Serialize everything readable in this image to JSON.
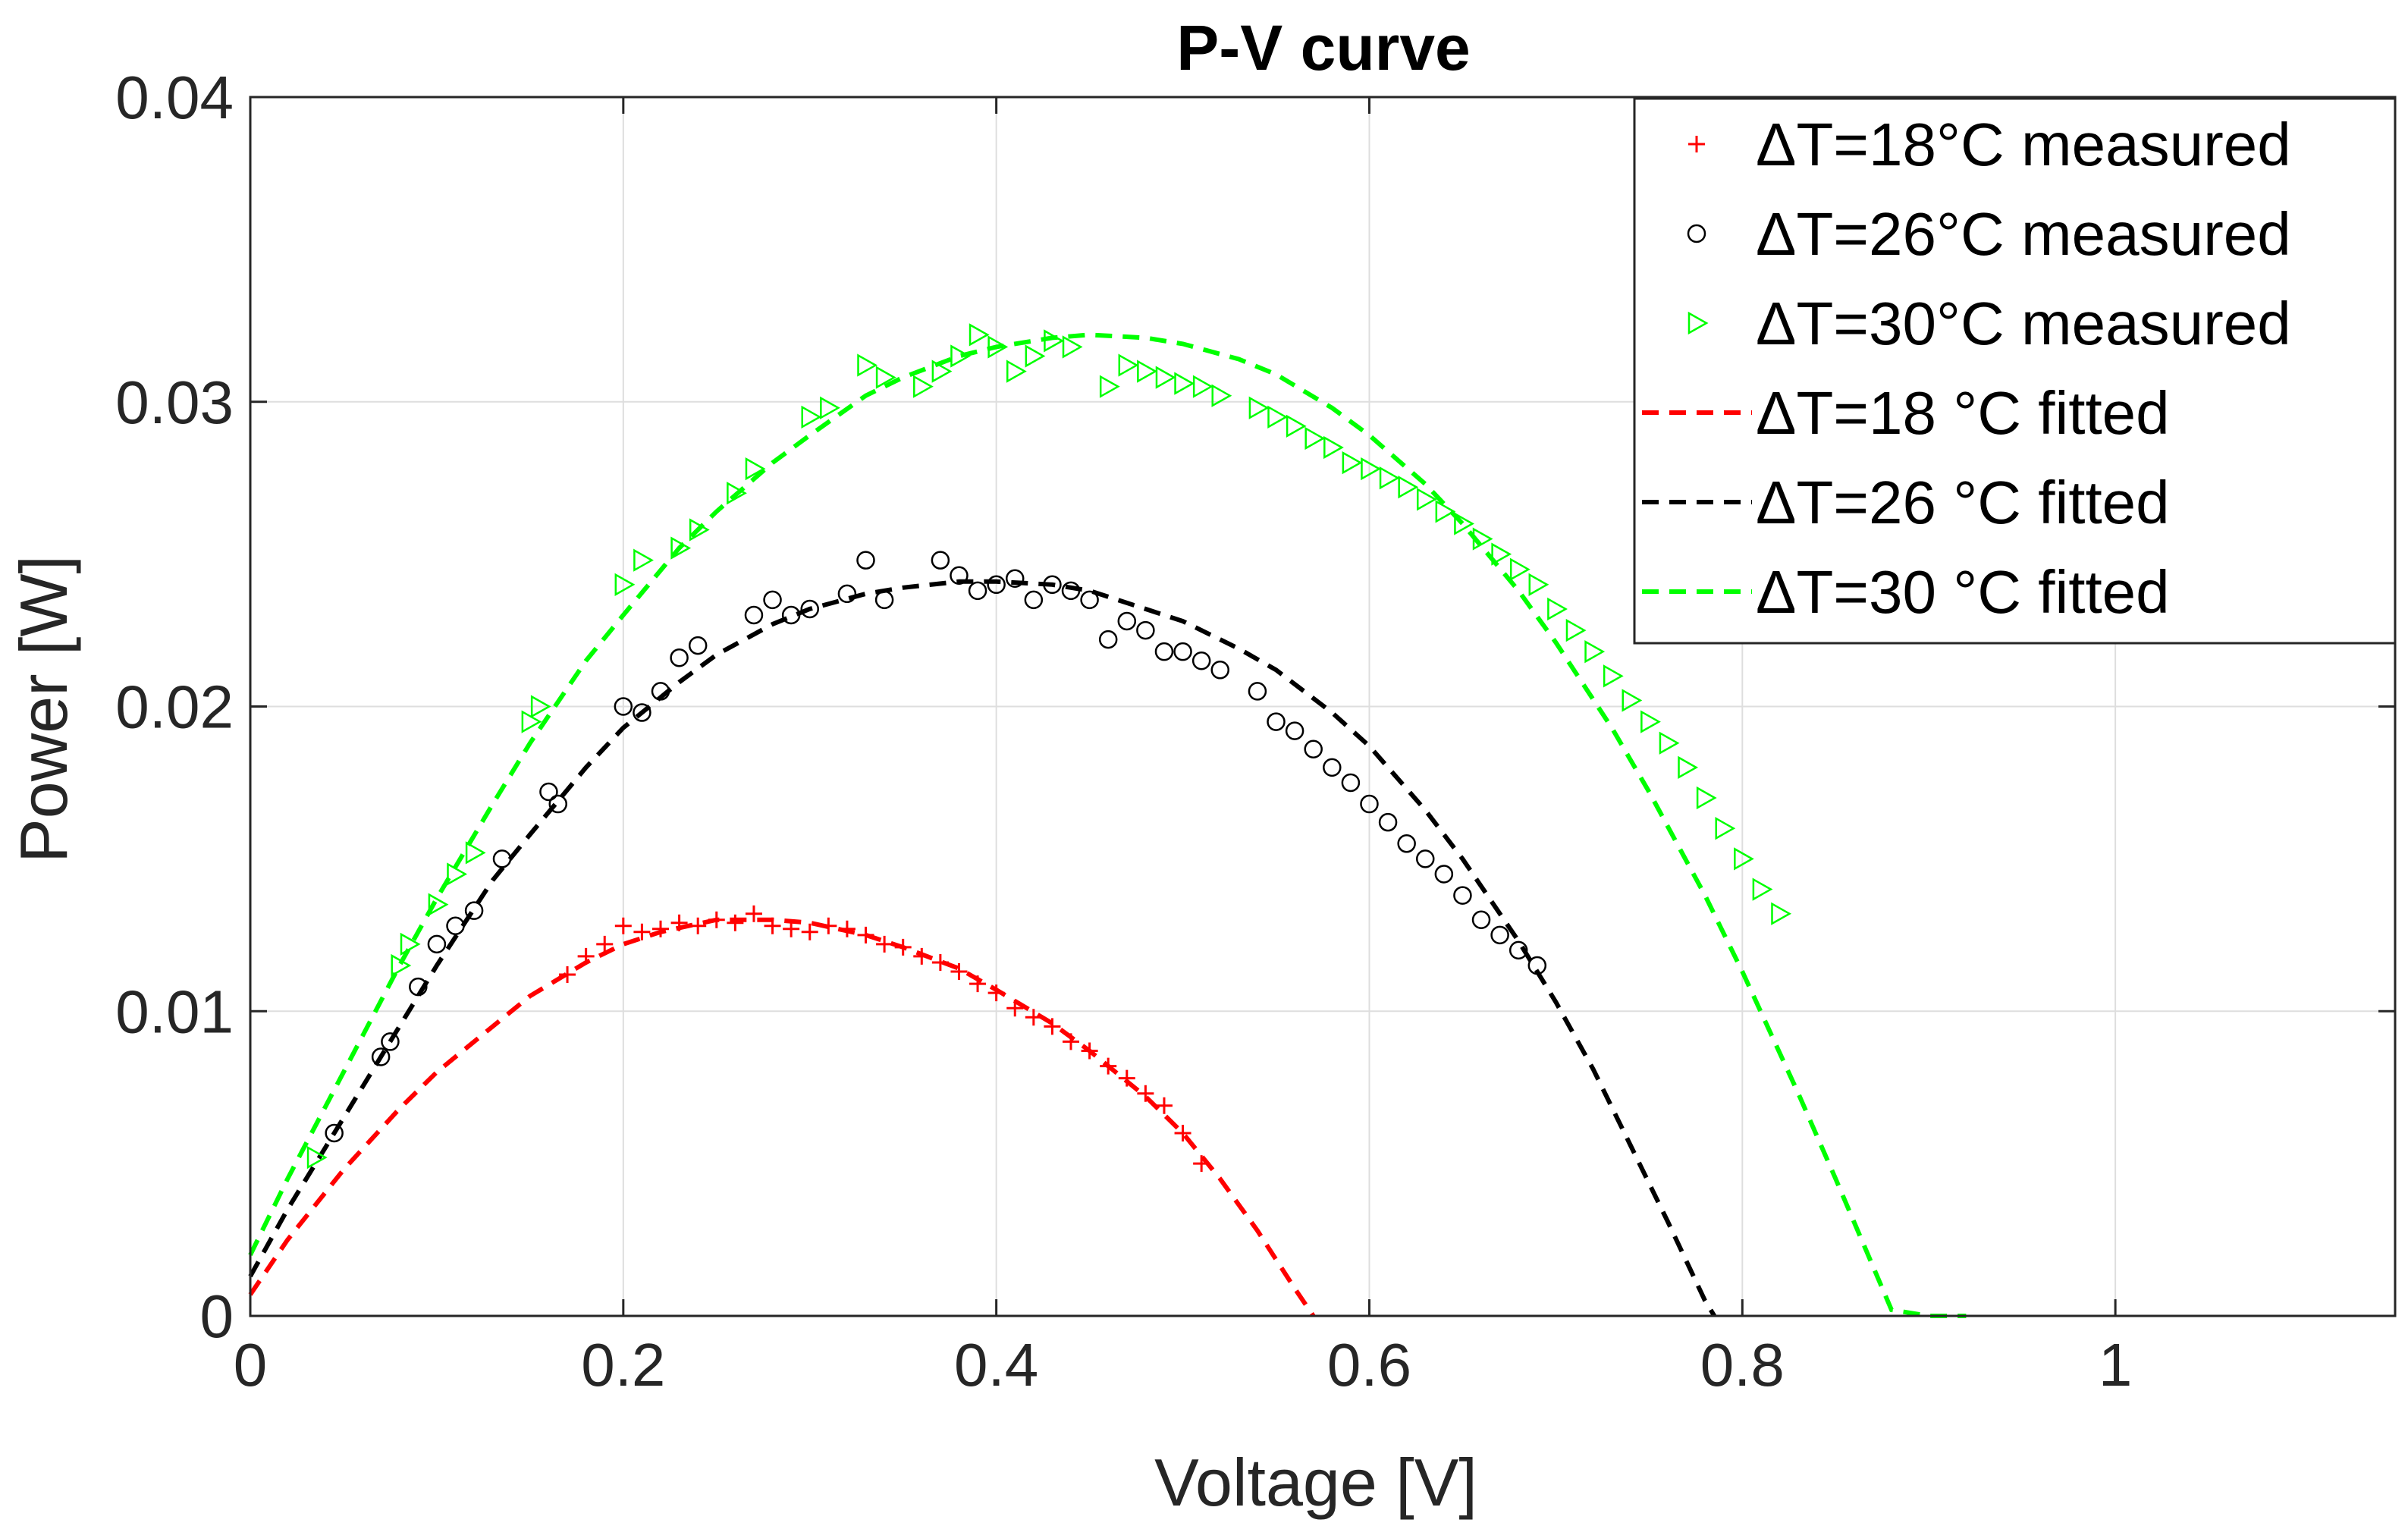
{
  "chart_data": {
    "type": "scatter",
    "title": "P-V curve",
    "xlabel": "Voltage [V]",
    "ylabel": "Power [W]",
    "xlim": [
      0,
      1.15
    ],
    "ylim": [
      0,
      0.04
    ],
    "xticks": [
      0,
      0.2,
      0.4,
      0.6,
      0.8,
      1
    ],
    "xtick_labels": [
      "0",
      "0.2",
      "0.4",
      "0.6",
      "0.8",
      "1"
    ],
    "yticks": [
      0,
      0.01,
      0.02,
      0.03,
      0.04
    ],
    "ytick_labels": [
      "0",
      "0.01",
      "0.02",
      "0.03",
      "0.04"
    ],
    "grid": true,
    "legend_position": "top-right",
    "series": [
      {
        "name": "ΔT=18°C measured",
        "kind": "measured",
        "marker": "plus",
        "color": "#ff0000",
        "x": [
          0.17,
          0.18,
          0.19,
          0.2,
          0.21,
          0.22,
          0.23,
          0.24,
          0.25,
          0.26,
          0.27,
          0.28,
          0.29,
          0.3,
          0.31,
          0.32,
          0.33,
          0.34,
          0.35,
          0.36,
          0.37,
          0.38,
          0.39,
          0.4,
          0.41,
          0.42,
          0.43,
          0.44,
          0.45,
          0.46,
          0.47,
          0.48,
          0.49,
          0.5,
          0.51
        ],
        "y": [
          0.0112,
          0.0118,
          0.0122,
          0.0128,
          0.0126,
          0.0127,
          0.0129,
          0.0128,
          0.013,
          0.0129,
          0.0132,
          0.0128,
          0.0127,
          0.0126,
          0.0128,
          0.0127,
          0.0125,
          0.0122,
          0.0121,
          0.0118,
          0.0116,
          0.0113,
          0.0109,
          0.0106,
          0.0101,
          0.0098,
          0.0095,
          0.009,
          0.0087,
          0.0082,
          0.0078,
          0.0073,
          0.0069,
          0.006,
          0.005
        ]
      },
      {
        "name": "ΔT=26°C measured",
        "kind": "measured",
        "marker": "circle",
        "color": "#000000",
        "x": [
          0.045,
          0.07,
          0.075,
          0.09,
          0.1,
          0.11,
          0.12,
          0.135,
          0.16,
          0.165,
          0.2,
          0.21,
          0.22,
          0.23,
          0.24,
          0.27,
          0.28,
          0.29,
          0.3,
          0.32,
          0.33,
          0.34,
          0.37,
          0.38,
          0.39,
          0.4,
          0.41,
          0.42,
          0.43,
          0.44,
          0.45,
          0.46,
          0.47,
          0.48,
          0.49,
          0.5,
          0.51,
          0.52,
          0.54,
          0.55,
          0.56,
          0.57,
          0.58,
          0.59,
          0.6,
          0.61,
          0.62,
          0.63,
          0.64,
          0.65,
          0.66,
          0.67,
          0.68,
          0.69
        ],
        "y": [
          0.006,
          0.0085,
          0.009,
          0.0108,
          0.0122,
          0.0128,
          0.0133,
          0.015,
          0.0172,
          0.0168,
          0.02,
          0.0198,
          0.0205,
          0.0216,
          0.022,
          0.023,
          0.0235,
          0.023,
          0.0232,
          0.0237,
          0.0248,
          0.0235,
          0.0248,
          0.0243,
          0.0238,
          0.024,
          0.0242,
          0.0235,
          0.024,
          0.0238,
          0.0235,
          0.0222,
          0.0228,
          0.0225,
          0.0218,
          0.0218,
          0.0215,
          0.0212,
          0.0205,
          0.0195,
          0.0192,
          0.0186,
          0.018,
          0.0175,
          0.0168,
          0.0162,
          0.0155,
          0.015,
          0.0145,
          0.0138,
          0.013,
          0.0125,
          0.012,
          0.0115
        ]
      },
      {
        "name": "ΔT=30°C measured",
        "kind": "measured",
        "marker": "triangle-right",
        "color": "#00ff00",
        "x": [
          0.035,
          0.08,
          0.085,
          0.1,
          0.11,
          0.12,
          0.15,
          0.155,
          0.2,
          0.21,
          0.23,
          0.24,
          0.26,
          0.27,
          0.3,
          0.31,
          0.33,
          0.34,
          0.36,
          0.37,
          0.38,
          0.39,
          0.4,
          0.41,
          0.42,
          0.43,
          0.44,
          0.46,
          0.47,
          0.48,
          0.49,
          0.5,
          0.51,
          0.52,
          0.54,
          0.55,
          0.56,
          0.57,
          0.58,
          0.59,
          0.6,
          0.61,
          0.62,
          0.63,
          0.64,
          0.65,
          0.66,
          0.67,
          0.68,
          0.69,
          0.7,
          0.71,
          0.72,
          0.73,
          0.74,
          0.75,
          0.76,
          0.77,
          0.78,
          0.79,
          0.8,
          0.81,
          0.82
        ],
        "y": [
          0.0052,
          0.0115,
          0.0122,
          0.0135,
          0.0145,
          0.0152,
          0.0195,
          0.02,
          0.024,
          0.0248,
          0.0252,
          0.0258,
          0.027,
          0.0278,
          0.0295,
          0.0298,
          0.0312,
          0.0308,
          0.0305,
          0.031,
          0.0315,
          0.0322,
          0.0318,
          0.031,
          0.0315,
          0.032,
          0.0318,
          0.0305,
          0.0312,
          0.031,
          0.0308,
          0.0306,
          0.0305,
          0.0302,
          0.0298,
          0.0295,
          0.0292,
          0.0288,
          0.0285,
          0.028,
          0.0278,
          0.0275,
          0.0272,
          0.0268,
          0.0264,
          0.026,
          0.0255,
          0.025,
          0.0245,
          0.024,
          0.0232,
          0.0225,
          0.0218,
          0.021,
          0.0202,
          0.0195,
          0.0188,
          0.018,
          0.017,
          0.016,
          0.015,
          0.014,
          0.0132
        ]
      },
      {
        "name": "ΔT=18 °C fitted",
        "kind": "fitted",
        "line": "dashed",
        "color": "#ff0000",
        "x": [
          0,
          0.02,
          0.05,
          0.08,
          0.1,
          0.13,
          0.15,
          0.18,
          0.2,
          0.22,
          0.25,
          0.28,
          0.3,
          0.33,
          0.35,
          0.38,
          0.4,
          0.43,
          0.45,
          0.48,
          0.5,
          0.52,
          0.54,
          0.56,
          0.57
        ],
        "y": [
          0.0007,
          0.0025,
          0.0048,
          0.0068,
          0.008,
          0.0095,
          0.0105,
          0.0116,
          0.0122,
          0.0126,
          0.013,
          0.013,
          0.0129,
          0.0125,
          0.0121,
          0.0114,
          0.0107,
          0.0096,
          0.0087,
          0.0072,
          0.006,
          0.0045,
          0.0028,
          0.0009,
          0.0
        ]
      },
      {
        "name": "ΔT=26 °C fitted",
        "kind": "fitted",
        "line": "dashed",
        "color": "#000000",
        "x": [
          0,
          0.02,
          0.05,
          0.08,
          0.1,
          0.13,
          0.15,
          0.18,
          0.2,
          0.23,
          0.25,
          0.28,
          0.3,
          0.33,
          0.35,
          0.38,
          0.4,
          0.43,
          0.45,
          0.48,
          0.5,
          0.53,
          0.55,
          0.58,
          0.6,
          0.63,
          0.65,
          0.68,
          0.7,
          0.72,
          0.74,
          0.76,
          0.78,
          0.785
        ],
        "y": [
          0.0013,
          0.0035,
          0.0065,
          0.0095,
          0.0115,
          0.0143,
          0.0158,
          0.018,
          0.0193,
          0.0208,
          0.0217,
          0.0227,
          0.0232,
          0.0237,
          0.0239,
          0.0241,
          0.0241,
          0.024,
          0.0238,
          0.0232,
          0.0228,
          0.0219,
          0.0212,
          0.0198,
          0.0187,
          0.0166,
          0.015,
          0.0123,
          0.0103,
          0.0081,
          0.0056,
          0.0031,
          0.0005,
          0.0
        ]
      },
      {
        "name": "ΔT=30 °C fitted",
        "kind": "fitted",
        "line": "dashed",
        "color": "#00ff00",
        "x": [
          0,
          0.02,
          0.05,
          0.08,
          0.1,
          0.13,
          0.15,
          0.18,
          0.2,
          0.23,
          0.25,
          0.28,
          0.3,
          0.33,
          0.35,
          0.38,
          0.4,
          0.43,
          0.45,
          0.48,
          0.5,
          0.53,
          0.55,
          0.58,
          0.6,
          0.63,
          0.65,
          0.68,
          0.7,
          0.73,
          0.75,
          0.78,
          0.8,
          0.83,
          0.85,
          0.88,
          0.9,
          0.92
        ],
        "y": [
          0.002,
          0.0045,
          0.008,
          0.0115,
          0.0137,
          0.0168,
          0.0188,
          0.0215,
          0.023,
          0.0252,
          0.0264,
          0.028,
          0.0289,
          0.0302,
          0.0308,
          0.0315,
          0.0318,
          0.0321,
          0.0322,
          0.0321,
          0.0319,
          0.0314,
          0.0309,
          0.0298,
          0.0289,
          0.0273,
          0.026,
          0.0238,
          0.0221,
          0.0193,
          0.0172,
          0.0138,
          0.0113,
          0.0073,
          0.0045,
          0.0002,
          0.0,
          0.0
        ]
      }
    ]
  }
}
